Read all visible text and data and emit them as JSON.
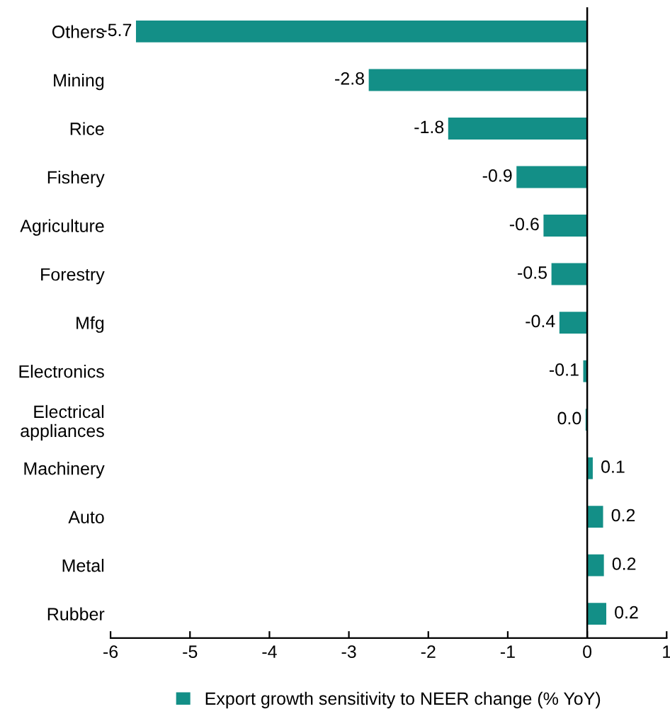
{
  "chart_data": {
    "type": "bar",
    "orientation": "horizontal",
    "categories": [
      "Others",
      "Mining",
      "Rice",
      "Fishery",
      "Agriculture",
      "Forestry",
      "Mfg",
      "Electronics",
      "Electrical\nappliances",
      "Machinery",
      "Auto",
      "Metal",
      "Rubber"
    ],
    "series": [
      {
        "name": "Export growth sensitivity to NEER change (% YoY)",
        "color": "#138f87",
        "values": [
          -5.68,
          -2.75,
          -1.75,
          -0.89,
          -0.55,
          -0.45,
          -0.35,
          -0.05,
          -0.02,
          0.07,
          0.2,
          0.21,
          0.24
        ],
        "value_labels": [
          "-5.7",
          "-2.8",
          "-1.8",
          "-0.9",
          "-0.6",
          "-0.5",
          "-0.4",
          "-0.1",
          "0.0",
          "0.1",
          "0.2",
          "0.2",
          "0.2"
        ]
      }
    ],
    "xlim": [
      -6,
      1
    ],
    "xticks": [
      -6,
      -5,
      -4,
      -3,
      -2,
      -1,
      0,
      1
    ],
    "grid": false,
    "legend": "bottom",
    "ref_lines": [
      {
        "axis": "x",
        "value": 0,
        "color": "#000000"
      }
    ]
  }
}
